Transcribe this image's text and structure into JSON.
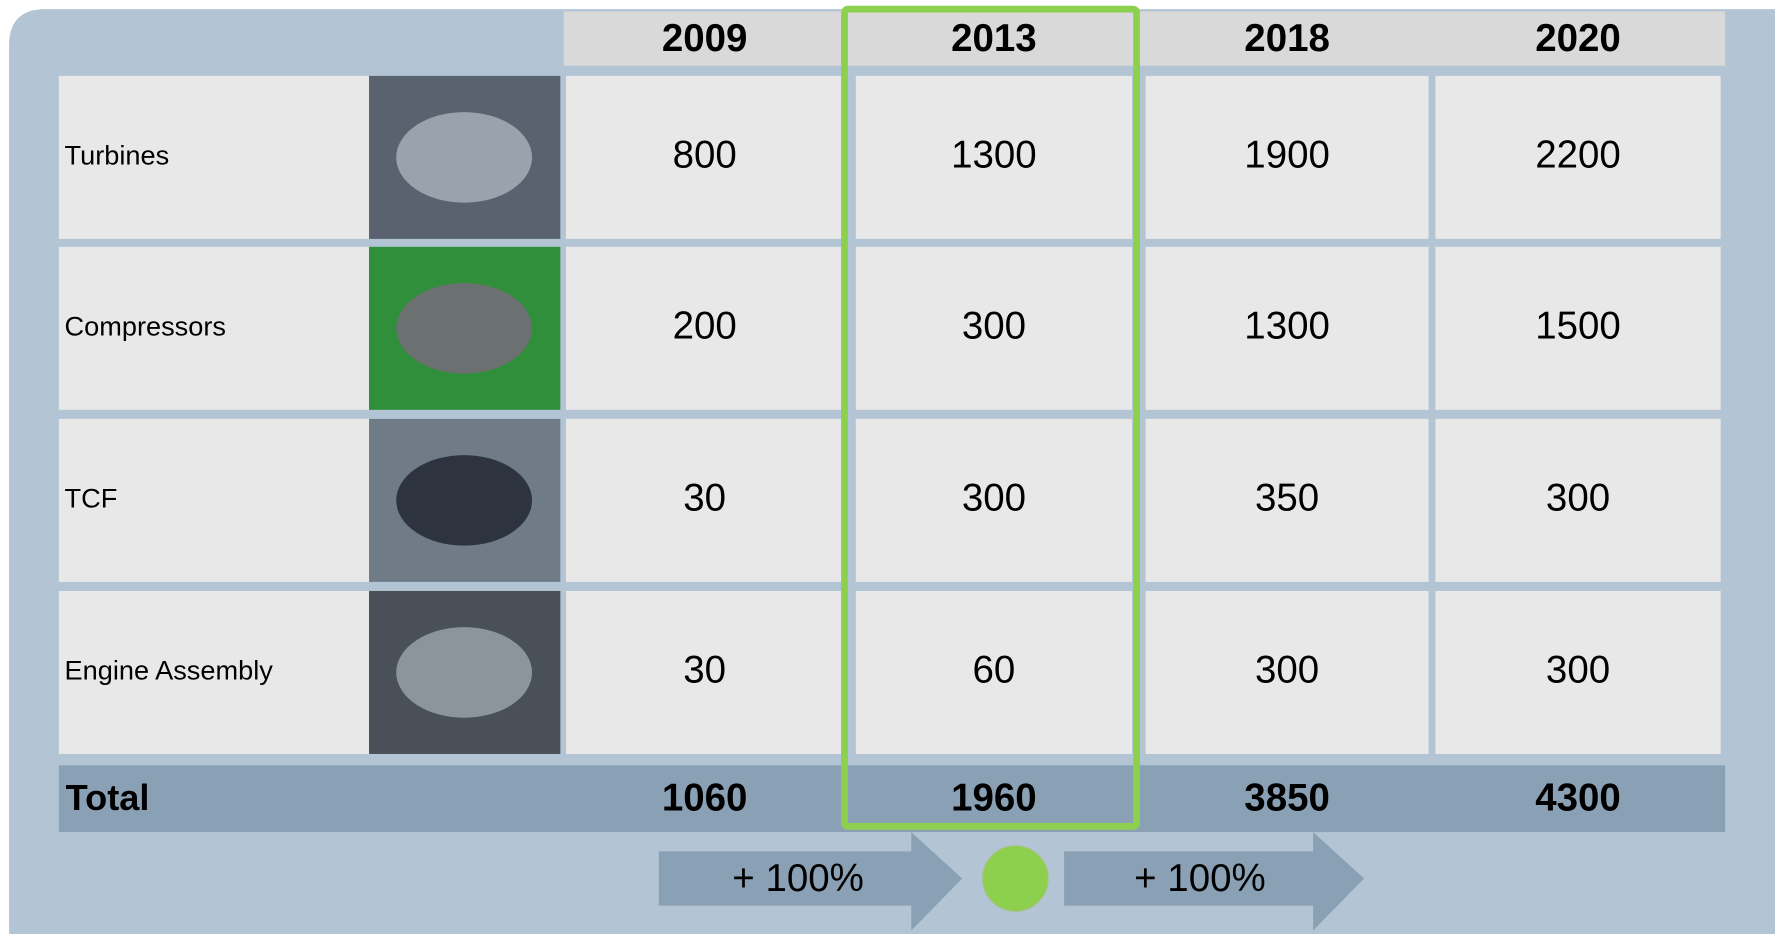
{
  "table": {
    "header": [
      "2009",
      "2013",
      "2018",
      "2020"
    ],
    "rows": [
      {
        "label": "Turbines",
        "values": [
          800,
          1300,
          1900,
          2200
        ]
      },
      {
        "label": "Compressors",
        "values": [
          200,
          300,
          1300,
          1500
        ]
      },
      {
        "label": "TCF",
        "values": [
          30,
          300,
          350,
          300
        ]
      },
      {
        "label": "Engine Assembly",
        "values": [
          30,
          60,
          300,
          300
        ]
      }
    ],
    "total": {
      "label": "Total",
      "values": [
        1060,
        1960,
        3850,
        4300
      ]
    }
  },
  "growth": [
    "+ 100%",
    "+ 100%"
  ]
}
